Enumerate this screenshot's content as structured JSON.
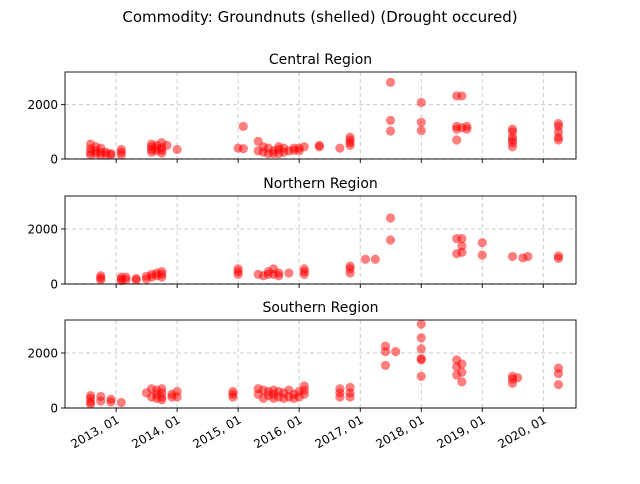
{
  "figure": {
    "suptitle": "Commodity: Groundnuts (shelled) (Drought occured)"
  },
  "style": {
    "point_color": "#ff0000",
    "point_opacity": 0.5,
    "grid_color": "#cccccc",
    "axis_color": "#000000"
  },
  "chart_data": [
    {
      "type": "scatter",
      "title": "Central Region",
      "xlabel": "",
      "ylabel": "",
      "ylim": [
        0,
        3200
      ],
      "yticks": [
        0,
        2000
      ],
      "xlim": [
        "2012-03-01",
        "2020-07-15"
      ],
      "xticks": [
        "2013-01-01",
        "2014-01-01",
        "2015-01-01",
        "2016-01-01",
        "2017-01-01",
        "2018-01-01",
        "2019-01-01",
        "2020-01-01"
      ],
      "xtick_labels": [
        "2013, 01",
        "2014, 01",
        "2015, 01",
        "2016, 01",
        "2017, 01",
        "2018, 01",
        "2019, 01",
        "2020, 01"
      ],
      "show_xtick_labels": false,
      "grid": "dashed, both axes",
      "points": [
        {
          "x": "2012-08-01",
          "y": 550
        },
        {
          "x": "2012-08-01",
          "y": 380
        },
        {
          "x": "2012-08-01",
          "y": 250
        },
        {
          "x": "2012-08-01",
          "y": 150
        },
        {
          "x": "2012-09-01",
          "y": 450
        },
        {
          "x": "2012-09-01",
          "y": 300
        },
        {
          "x": "2012-09-01",
          "y": 200
        },
        {
          "x": "2012-10-01",
          "y": 400
        },
        {
          "x": "2012-10-01",
          "y": 250
        },
        {
          "x": "2012-10-01",
          "y": 150
        },
        {
          "x": "2012-11-01",
          "y": 250
        },
        {
          "x": "2012-11-01",
          "y": 180
        },
        {
          "x": "2012-12-01",
          "y": 200
        },
        {
          "x": "2012-12-01",
          "y": 150
        },
        {
          "x": "2013-02-01",
          "y": 350
        },
        {
          "x": "2013-02-01",
          "y": 250
        },
        {
          "x": "2013-02-01",
          "y": 150
        },
        {
          "x": "2013-08-01",
          "y": 550
        },
        {
          "x": "2013-08-01",
          "y": 450
        },
        {
          "x": "2013-08-01",
          "y": 350
        },
        {
          "x": "2013-08-01",
          "y": 250
        },
        {
          "x": "2013-09-01",
          "y": 500
        },
        {
          "x": "2013-09-01",
          "y": 400
        },
        {
          "x": "2013-09-01",
          "y": 300
        },
        {
          "x": "2013-10-01",
          "y": 600
        },
        {
          "x": "2013-10-01",
          "y": 420
        },
        {
          "x": "2013-10-01",
          "y": 320
        },
        {
          "x": "2013-10-01",
          "y": 220
        },
        {
          "x": "2013-11-01",
          "y": 500
        },
        {
          "x": "2014-01-01",
          "y": 350
        },
        {
          "x": "2015-01-01",
          "y": 400
        },
        {
          "x": "2015-02-01",
          "y": 1200
        },
        {
          "x": "2015-02-01",
          "y": 380
        },
        {
          "x": "2015-05-01",
          "y": 650
        },
        {
          "x": "2015-05-01",
          "y": 300
        },
        {
          "x": "2015-06-01",
          "y": 450
        },
        {
          "x": "2015-06-01",
          "y": 250
        },
        {
          "x": "2015-07-01",
          "y": 400
        },
        {
          "x": "2015-07-01",
          "y": 200
        },
        {
          "x": "2015-08-01",
          "y": 300
        },
        {
          "x": "2015-08-01",
          "y": 200
        },
        {
          "x": "2015-09-01",
          "y": 450
        },
        {
          "x": "2015-09-01",
          "y": 350
        },
        {
          "x": "2015-09-01",
          "y": 200
        },
        {
          "x": "2015-10-01",
          "y": 400
        },
        {
          "x": "2015-10-01",
          "y": 250
        },
        {
          "x": "2015-11-01",
          "y": 300
        },
        {
          "x": "2015-12-01",
          "y": 400
        },
        {
          "x": "2015-12-01",
          "y": 320
        },
        {
          "x": "2016-01-01",
          "y": 400
        },
        {
          "x": "2016-01-01",
          "y": 300
        },
        {
          "x": "2016-02-01",
          "y": 450
        },
        {
          "x": "2016-05-01",
          "y": 500
        },
        {
          "x": "2016-05-01",
          "y": 450
        },
        {
          "x": "2016-09-01",
          "y": 400
        },
        {
          "x": "2016-11-01",
          "y": 800
        },
        {
          "x": "2016-11-01",
          "y": 700
        },
        {
          "x": "2016-11-01",
          "y": 600
        },
        {
          "x": "2016-11-01",
          "y": 500
        },
        {
          "x": "2017-07-01",
          "y": 2820
        },
        {
          "x": "2017-07-01",
          "y": 1420
        },
        {
          "x": "2017-07-01",
          "y": 1030
        },
        {
          "x": "2018-01-01",
          "y": 2080
        },
        {
          "x": "2018-01-01",
          "y": 1350
        },
        {
          "x": "2018-01-01",
          "y": 1050
        },
        {
          "x": "2018-08-01",
          "y": 2320
        },
        {
          "x": "2018-08-01",
          "y": 1200
        },
        {
          "x": "2018-08-01",
          "y": 1100
        },
        {
          "x": "2018-08-01",
          "y": 700
        },
        {
          "x": "2018-09-01",
          "y": 2320
        },
        {
          "x": "2018-09-01",
          "y": 1150
        },
        {
          "x": "2018-10-01",
          "y": 1200
        },
        {
          "x": "2018-10-01",
          "y": 1100
        },
        {
          "x": "2019-07-01",
          "y": 1100
        },
        {
          "x": "2019-07-01",
          "y": 1000
        },
        {
          "x": "2019-07-01",
          "y": 800
        },
        {
          "x": "2019-07-01",
          "y": 700
        },
        {
          "x": "2019-07-01",
          "y": 600
        },
        {
          "x": "2019-07-01",
          "y": 450
        },
        {
          "x": "2020-04-01",
          "y": 1300
        },
        {
          "x": "2020-04-01",
          "y": 1200
        },
        {
          "x": "2020-04-01",
          "y": 1000
        },
        {
          "x": "2020-04-01",
          "y": 800
        },
        {
          "x": "2020-04-01",
          "y": 700
        }
      ]
    },
    {
      "type": "scatter",
      "title": "Northern Region",
      "xlabel": "",
      "ylabel": "",
      "ylim": [
        0,
        3200
      ],
      "yticks": [
        0,
        2000
      ],
      "xlim": [
        "2012-03-01",
        "2020-07-15"
      ],
      "xticks": [
        "2013-01-01",
        "2014-01-01",
        "2015-01-01",
        "2016-01-01",
        "2017-01-01",
        "2018-01-01",
        "2019-01-01",
        "2020-01-01"
      ],
      "xtick_labels": [
        "2013, 01",
        "2014, 01",
        "2015, 01",
        "2016, 01",
        "2017, 01",
        "2018, 01",
        "2019, 01",
        "2020, 01"
      ],
      "show_xtick_labels": false,
      "grid": "dashed, both axes",
      "points": [
        {
          "x": "2012-10-01",
          "y": 300
        },
        {
          "x": "2012-10-01",
          "y": 220
        },
        {
          "x": "2012-10-01",
          "y": 150
        },
        {
          "x": "2013-02-01",
          "y": 250
        },
        {
          "x": "2013-02-01",
          "y": 180
        },
        {
          "x": "2013-02-01",
          "y": 120
        },
        {
          "x": "2013-03-01",
          "y": 250
        },
        {
          "x": "2013-03-01",
          "y": 150
        },
        {
          "x": "2013-05-01",
          "y": 200
        },
        {
          "x": "2013-05-01",
          "y": 150
        },
        {
          "x": "2013-07-01",
          "y": 280
        },
        {
          "x": "2013-07-01",
          "y": 180
        },
        {
          "x": "2013-08-01",
          "y": 350
        },
        {
          "x": "2013-08-01",
          "y": 250
        },
        {
          "x": "2013-09-01",
          "y": 400
        },
        {
          "x": "2013-09-01",
          "y": 300
        },
        {
          "x": "2013-10-01",
          "y": 450
        },
        {
          "x": "2013-10-01",
          "y": 350
        },
        {
          "x": "2013-10-01",
          "y": 250
        },
        {
          "x": "2015-01-01",
          "y": 550
        },
        {
          "x": "2015-01-01",
          "y": 450
        },
        {
          "x": "2015-01-01",
          "y": 350
        },
        {
          "x": "2015-05-01",
          "y": 350
        },
        {
          "x": "2015-06-01",
          "y": 300
        },
        {
          "x": "2015-07-01",
          "y": 450
        },
        {
          "x": "2015-07-01",
          "y": 350
        },
        {
          "x": "2015-08-01",
          "y": 550
        },
        {
          "x": "2015-08-01",
          "y": 350
        },
        {
          "x": "2015-09-01",
          "y": 400
        },
        {
          "x": "2015-09-01",
          "y": 300
        },
        {
          "x": "2015-11-01",
          "y": 400
        },
        {
          "x": "2016-02-01",
          "y": 550
        },
        {
          "x": "2016-02-01",
          "y": 450
        },
        {
          "x": "2016-02-01",
          "y": 350
        },
        {
          "x": "2016-11-01",
          "y": 650
        },
        {
          "x": "2016-11-01",
          "y": 550
        },
        {
          "x": "2016-11-01",
          "y": 400
        },
        {
          "x": "2017-02-01",
          "y": 900
        },
        {
          "x": "2017-04-01",
          "y": 900
        },
        {
          "x": "2017-07-01",
          "y": 2400
        },
        {
          "x": "2017-07-01",
          "y": 1600
        },
        {
          "x": "2018-08-01",
          "y": 1650
        },
        {
          "x": "2018-08-01",
          "y": 1100
        },
        {
          "x": "2018-09-01",
          "y": 1650
        },
        {
          "x": "2018-09-01",
          "y": 1380
        },
        {
          "x": "2018-09-01",
          "y": 1150
        },
        {
          "x": "2019-01-01",
          "y": 1500
        },
        {
          "x": "2019-01-01",
          "y": 1050
        },
        {
          "x": "2019-07-01",
          "y": 1000
        },
        {
          "x": "2019-09-01",
          "y": 950
        },
        {
          "x": "2019-10-01",
          "y": 1000
        },
        {
          "x": "2020-04-01",
          "y": 1020
        },
        {
          "x": "2020-04-01",
          "y": 930
        }
      ]
    },
    {
      "type": "scatter",
      "title": "Southern Region",
      "xlabel": "",
      "ylabel": "",
      "ylim": [
        0,
        3200
      ],
      "yticks": [
        0,
        2000
      ],
      "xlim": [
        "2012-03-01",
        "2020-07-15"
      ],
      "xticks": [
        "2013-01-01",
        "2014-01-01",
        "2015-01-01",
        "2016-01-01",
        "2017-01-01",
        "2018-01-01",
        "2019-01-01",
        "2020-01-01"
      ],
      "xtick_labels": [
        "2013, 01",
        "2014, 01",
        "2015, 01",
        "2016, 01",
        "2017, 01",
        "2018, 01",
        "2019, 01",
        "2020, 01"
      ],
      "show_xtick_labels": true,
      "grid": "dashed, both axes",
      "points": [
        {
          "x": "2012-08-01",
          "y": 450
        },
        {
          "x": "2012-08-01",
          "y": 350
        },
        {
          "x": "2012-08-01",
          "y": 220
        },
        {
          "x": "2012-08-01",
          "y": 150
        },
        {
          "x": "2012-10-01",
          "y": 420
        },
        {
          "x": "2012-10-01",
          "y": 250
        },
        {
          "x": "2012-12-01",
          "y": 320
        },
        {
          "x": "2012-12-01",
          "y": 220
        },
        {
          "x": "2013-02-01",
          "y": 200
        },
        {
          "x": "2013-07-01",
          "y": 550
        },
        {
          "x": "2013-08-01",
          "y": 700
        },
        {
          "x": "2013-08-01",
          "y": 400
        },
        {
          "x": "2013-09-01",
          "y": 650
        },
        {
          "x": "2013-09-01",
          "y": 500
        },
        {
          "x": "2013-09-01",
          "y": 350
        },
        {
          "x": "2013-10-01",
          "y": 700
        },
        {
          "x": "2013-10-01",
          "y": 550
        },
        {
          "x": "2013-10-01",
          "y": 400
        },
        {
          "x": "2013-10-01",
          "y": 300
        },
        {
          "x": "2013-12-01",
          "y": 500
        },
        {
          "x": "2013-12-01",
          "y": 400
        },
        {
          "x": "2014-01-01",
          "y": 600
        },
        {
          "x": "2014-01-01",
          "y": 400
        },
        {
          "x": "2014-12-01",
          "y": 600
        },
        {
          "x": "2014-12-01",
          "y": 500
        },
        {
          "x": "2014-12-01",
          "y": 400
        },
        {
          "x": "2015-05-01",
          "y": 700
        },
        {
          "x": "2015-05-01",
          "y": 500
        },
        {
          "x": "2015-06-01",
          "y": 650
        },
        {
          "x": "2015-06-01",
          "y": 350
        },
        {
          "x": "2015-07-01",
          "y": 600
        },
        {
          "x": "2015-07-01",
          "y": 450
        },
        {
          "x": "2015-08-01",
          "y": 650
        },
        {
          "x": "2015-08-01",
          "y": 500
        },
        {
          "x": "2015-08-01",
          "y": 350
        },
        {
          "x": "2015-09-01",
          "y": 600
        },
        {
          "x": "2015-09-01",
          "y": 400
        },
        {
          "x": "2015-10-01",
          "y": 550
        },
        {
          "x": "2015-10-01",
          "y": 350
        },
        {
          "x": "2015-11-01",
          "y": 650
        },
        {
          "x": "2015-11-01",
          "y": 400
        },
        {
          "x": "2015-12-01",
          "y": 500
        },
        {
          "x": "2015-12-01",
          "y": 350
        },
        {
          "x": "2016-01-01",
          "y": 600
        },
        {
          "x": "2016-01-01",
          "y": 400
        },
        {
          "x": "2016-02-01",
          "y": 800
        },
        {
          "x": "2016-02-01",
          "y": 650
        },
        {
          "x": "2016-02-01",
          "y": 500
        },
        {
          "x": "2016-09-01",
          "y": 700
        },
        {
          "x": "2016-09-01",
          "y": 550
        },
        {
          "x": "2016-09-01",
          "y": 400
        },
        {
          "x": "2016-11-01",
          "y": 750
        },
        {
          "x": "2016-11-01",
          "y": 550
        },
        {
          "x": "2016-11-01",
          "y": 400
        },
        {
          "x": "2017-06-01",
          "y": 2250
        },
        {
          "x": "2017-06-01",
          "y": 2050
        },
        {
          "x": "2017-06-01",
          "y": 1550
        },
        {
          "x": "2017-08-01",
          "y": 2050
        },
        {
          "x": "2018-01-01",
          "y": 3050
        },
        {
          "x": "2018-01-01",
          "y": 2550
        },
        {
          "x": "2018-01-01",
          "y": 2150
        },
        {
          "x": "2018-01-01",
          "y": 1800
        },
        {
          "x": "2018-01-01",
          "y": 1750
        },
        {
          "x": "2018-01-01",
          "y": 1150
        },
        {
          "x": "2018-08-01",
          "y": 1750
        },
        {
          "x": "2018-08-01",
          "y": 1500
        },
        {
          "x": "2018-08-01",
          "y": 1200
        },
        {
          "x": "2018-09-01",
          "y": 1600
        },
        {
          "x": "2018-09-01",
          "y": 1300
        },
        {
          "x": "2018-09-01",
          "y": 950
        },
        {
          "x": "2019-07-01",
          "y": 1150
        },
        {
          "x": "2019-07-01",
          "y": 1050
        },
        {
          "x": "2019-07-01",
          "y": 900
        },
        {
          "x": "2019-08-01",
          "y": 1100
        },
        {
          "x": "2020-04-01",
          "y": 1450
        },
        {
          "x": "2020-04-01",
          "y": 1250
        },
        {
          "x": "2020-04-01",
          "y": 850
        }
      ]
    }
  ]
}
